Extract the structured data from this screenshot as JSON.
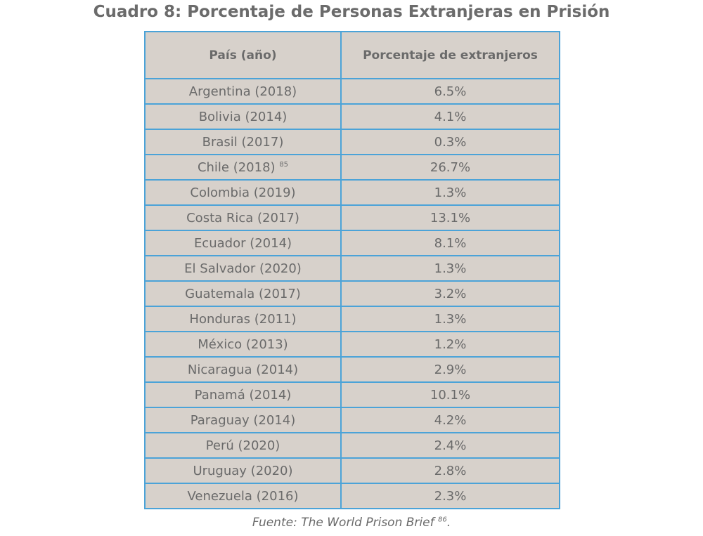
{
  "title": "Cuadro 8: Porcentaje de Personas Extranjeras en Prisión",
  "table": {
    "header": [
      "País (año)",
      "Porcentaje de extranjeros"
    ],
    "rows": [
      {
        "country": "Argentina (2018)",
        "percentage": "6.5%"
      },
      {
        "country": "Bolivia (2014)",
        "percentage": "4.1%"
      },
      {
        "country": "Brasil (2017)",
        "percentage": "0.3%"
      },
      {
        "country": "Chile (2018)",
        "footnote": "85",
        "percentage": "26.7%"
      },
      {
        "country": "Colombia (2019)",
        "percentage": "1.3%"
      },
      {
        "country": "Costa Rica (2017)",
        "percentage": "13.1%"
      },
      {
        "country": "Ecuador (2014)",
        "percentage": "8.1%"
      },
      {
        "country": "El Salvador (2020)",
        "percentage": "1.3%"
      },
      {
        "country": "Guatemala (2017)",
        "percentage": "3.2%"
      },
      {
        "country": "Honduras (2011)",
        "percentage": "1.3%"
      },
      {
        "country": "México (2013)",
        "percentage": "1.2%"
      },
      {
        "country": "Nicaragua (2014)",
        "percentage": "2.9%"
      },
      {
        "country": "Panamá (2014)",
        "percentage": "10.1%"
      },
      {
        "country": "Paraguay (2014)",
        "percentage": "4.2%"
      },
      {
        "country": "Perú (2020)",
        "percentage": "2.4%"
      },
      {
        "country": "Uruguay (2020)",
        "percentage": "2.8%"
      },
      {
        "country": "Venezuela (2016)",
        "percentage": "2.3%"
      }
    ]
  },
  "source": {
    "text": "Fuente: The World Prison Brief",
    "footnote": "86",
    "end": "."
  }
}
